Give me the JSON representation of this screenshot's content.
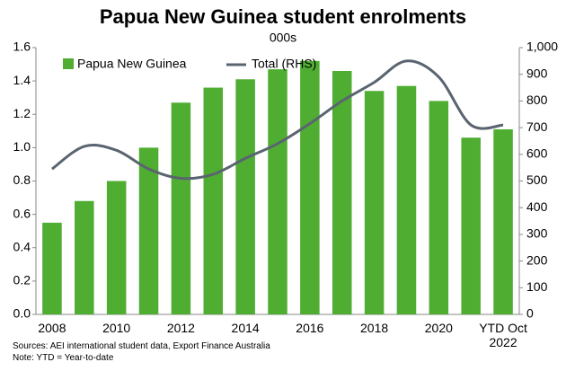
{
  "chart_data": {
    "type": "bar-line",
    "title": "Papua New Guinea student enrolments",
    "subtitle": "000s",
    "categories": [
      "2008",
      null,
      "2010",
      null,
      "2012",
      null,
      "2014",
      null,
      "2016",
      null,
      "2018",
      null,
      "2020",
      null,
      "YTD Oct 2022"
    ],
    "series": [
      {
        "name": "Papua New Guinea",
        "color": "#4fad32",
        "values": [
          0.55,
          0.68,
          0.8,
          1.0,
          1.27,
          1.36,
          1.41,
          1.47,
          1.52,
          1.46,
          1.34,
          1.37,
          1.28,
          1.06,
          1.11
        ]
      },
      {
        "name": "Total (RHS)",
        "color": "#5a6470",
        "axis": "y2",
        "values": [
          545,
          630,
          615,
          545,
          510,
          525,
          585,
          640,
          715,
          800,
          870,
          950,
          890,
          710,
          710
        ]
      }
    ],
    "ylim": [
      0,
      1.6
    ],
    "yticks": [
      {
        "value": 0,
        "label": "0.0"
      },
      {
        "value": 0.2,
        "label": "0.2"
      },
      {
        "value": 0.4,
        "label": "0.4"
      },
      {
        "value": 0.6,
        "label": "0.6"
      },
      {
        "value": 0.8,
        "label": "0.8"
      },
      {
        "value": 1.0,
        "label": "1.0"
      },
      {
        "value": 1.2,
        "label": "1.2"
      },
      {
        "value": 1.4,
        "label": "1.4"
      },
      {
        "value": 1.6,
        "label": "1.6"
      }
    ],
    "y2lim": [
      0,
      1000
    ],
    "y2ticks": [
      0,
      100,
      200,
      300,
      400,
      500,
      600,
      700,
      800,
      900,
      {
        "value": 1000,
        "label": "1,000"
      }
    ],
    "legend": "top-left",
    "footnotes": [
      "Sources: AEI international student data, Export Finance Australia",
      "Note: YTD = Year-to-date"
    ]
  }
}
